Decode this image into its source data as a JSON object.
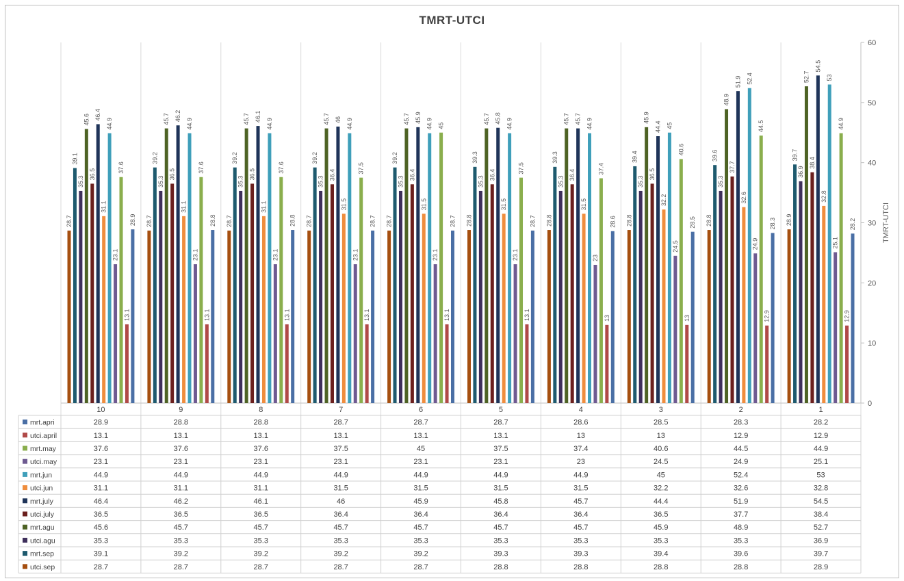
{
  "chart_data": {
    "type": "bar",
    "title": "TMRT-UTCI",
    "xlabel": "",
    "ylabel": "TMRT-UTCI",
    "ylim": [
      0,
      60
    ],
    "yticks": [
      0,
      10,
      20,
      30,
      40,
      50,
      60
    ],
    "y_axis_side": "right",
    "grid": "vertical-category-separators",
    "legend": "data-table-below",
    "categories": [
      "10",
      "9",
      "8",
      "7",
      "6",
      "5",
      "4",
      "3",
      "2",
      "1"
    ],
    "series": [
      {
        "name": "mrt.apri",
        "color": "#4a6fa5",
        "values": [
          28.9,
          28.8,
          28.8,
          28.7,
          28.7,
          28.7,
          28.6,
          28.5,
          28.3,
          28.2
        ]
      },
      {
        "name": "utci.april",
        "color": "#b04a48",
        "values": [
          13.1,
          13.1,
          13.1,
          13.1,
          13.1,
          13.1,
          13,
          13,
          12.9,
          12.9
        ]
      },
      {
        "name": "mrt.may",
        "color": "#8aae4d",
        "values": [
          37.6,
          37.6,
          37.6,
          37.5,
          45,
          37.5,
          37.4,
          40.6,
          44.5,
          44.9
        ]
      },
      {
        "name": "utci.may",
        "color": "#6e5a91",
        "values": [
          23.1,
          23.1,
          23.1,
          23.1,
          23.1,
          23.1,
          23,
          24.5,
          24.9,
          25.1
        ]
      },
      {
        "name": "mrt.jun",
        "color": "#3f9fba",
        "values": [
          44.9,
          44.9,
          44.9,
          44.9,
          44.9,
          44.9,
          44.9,
          45,
          52.4,
          53
        ]
      },
      {
        "name": "utci.jun",
        "color": "#ef8d3d",
        "values": [
          31.1,
          31.1,
          31.1,
          31.5,
          31.5,
          31.5,
          31.5,
          32.2,
          32.6,
          32.8
        ]
      },
      {
        "name": "mrt.july",
        "color": "#1f3459",
        "values": [
          46.4,
          46.2,
          46.1,
          46,
          45.9,
          45.8,
          45.7,
          44.4,
          51.9,
          54.5
        ]
      },
      {
        "name": "utci.july",
        "color": "#6b1f1d",
        "values": [
          36.5,
          36.5,
          36.5,
          36.4,
          36.4,
          36.4,
          36.4,
          36.5,
          37.7,
          38.4
        ]
      },
      {
        "name": "mrt.agu",
        "color": "#4e6325",
        "values": [
          45.6,
          45.7,
          45.7,
          45.7,
          45.7,
          45.7,
          45.7,
          45.9,
          48.9,
          52.7
        ]
      },
      {
        "name": "utci.agu",
        "color": "#3e2f5b",
        "values": [
          35.3,
          35.3,
          35.3,
          35.3,
          35.3,
          35.3,
          35.3,
          35.3,
          35.3,
          36.9
        ]
      },
      {
        "name": "mrt.sep",
        "color": "#1e5a6e",
        "values": [
          39.1,
          39.2,
          39.2,
          39.2,
          39.2,
          39.3,
          39.3,
          39.4,
          39.6,
          39.7
        ]
      },
      {
        "name": "utci.sep",
        "color": "#a54f10",
        "values": [
          28.7,
          28.7,
          28.7,
          28.7,
          28.7,
          28.8,
          28.8,
          28.8,
          28.8,
          28.9
        ]
      }
    ]
  }
}
